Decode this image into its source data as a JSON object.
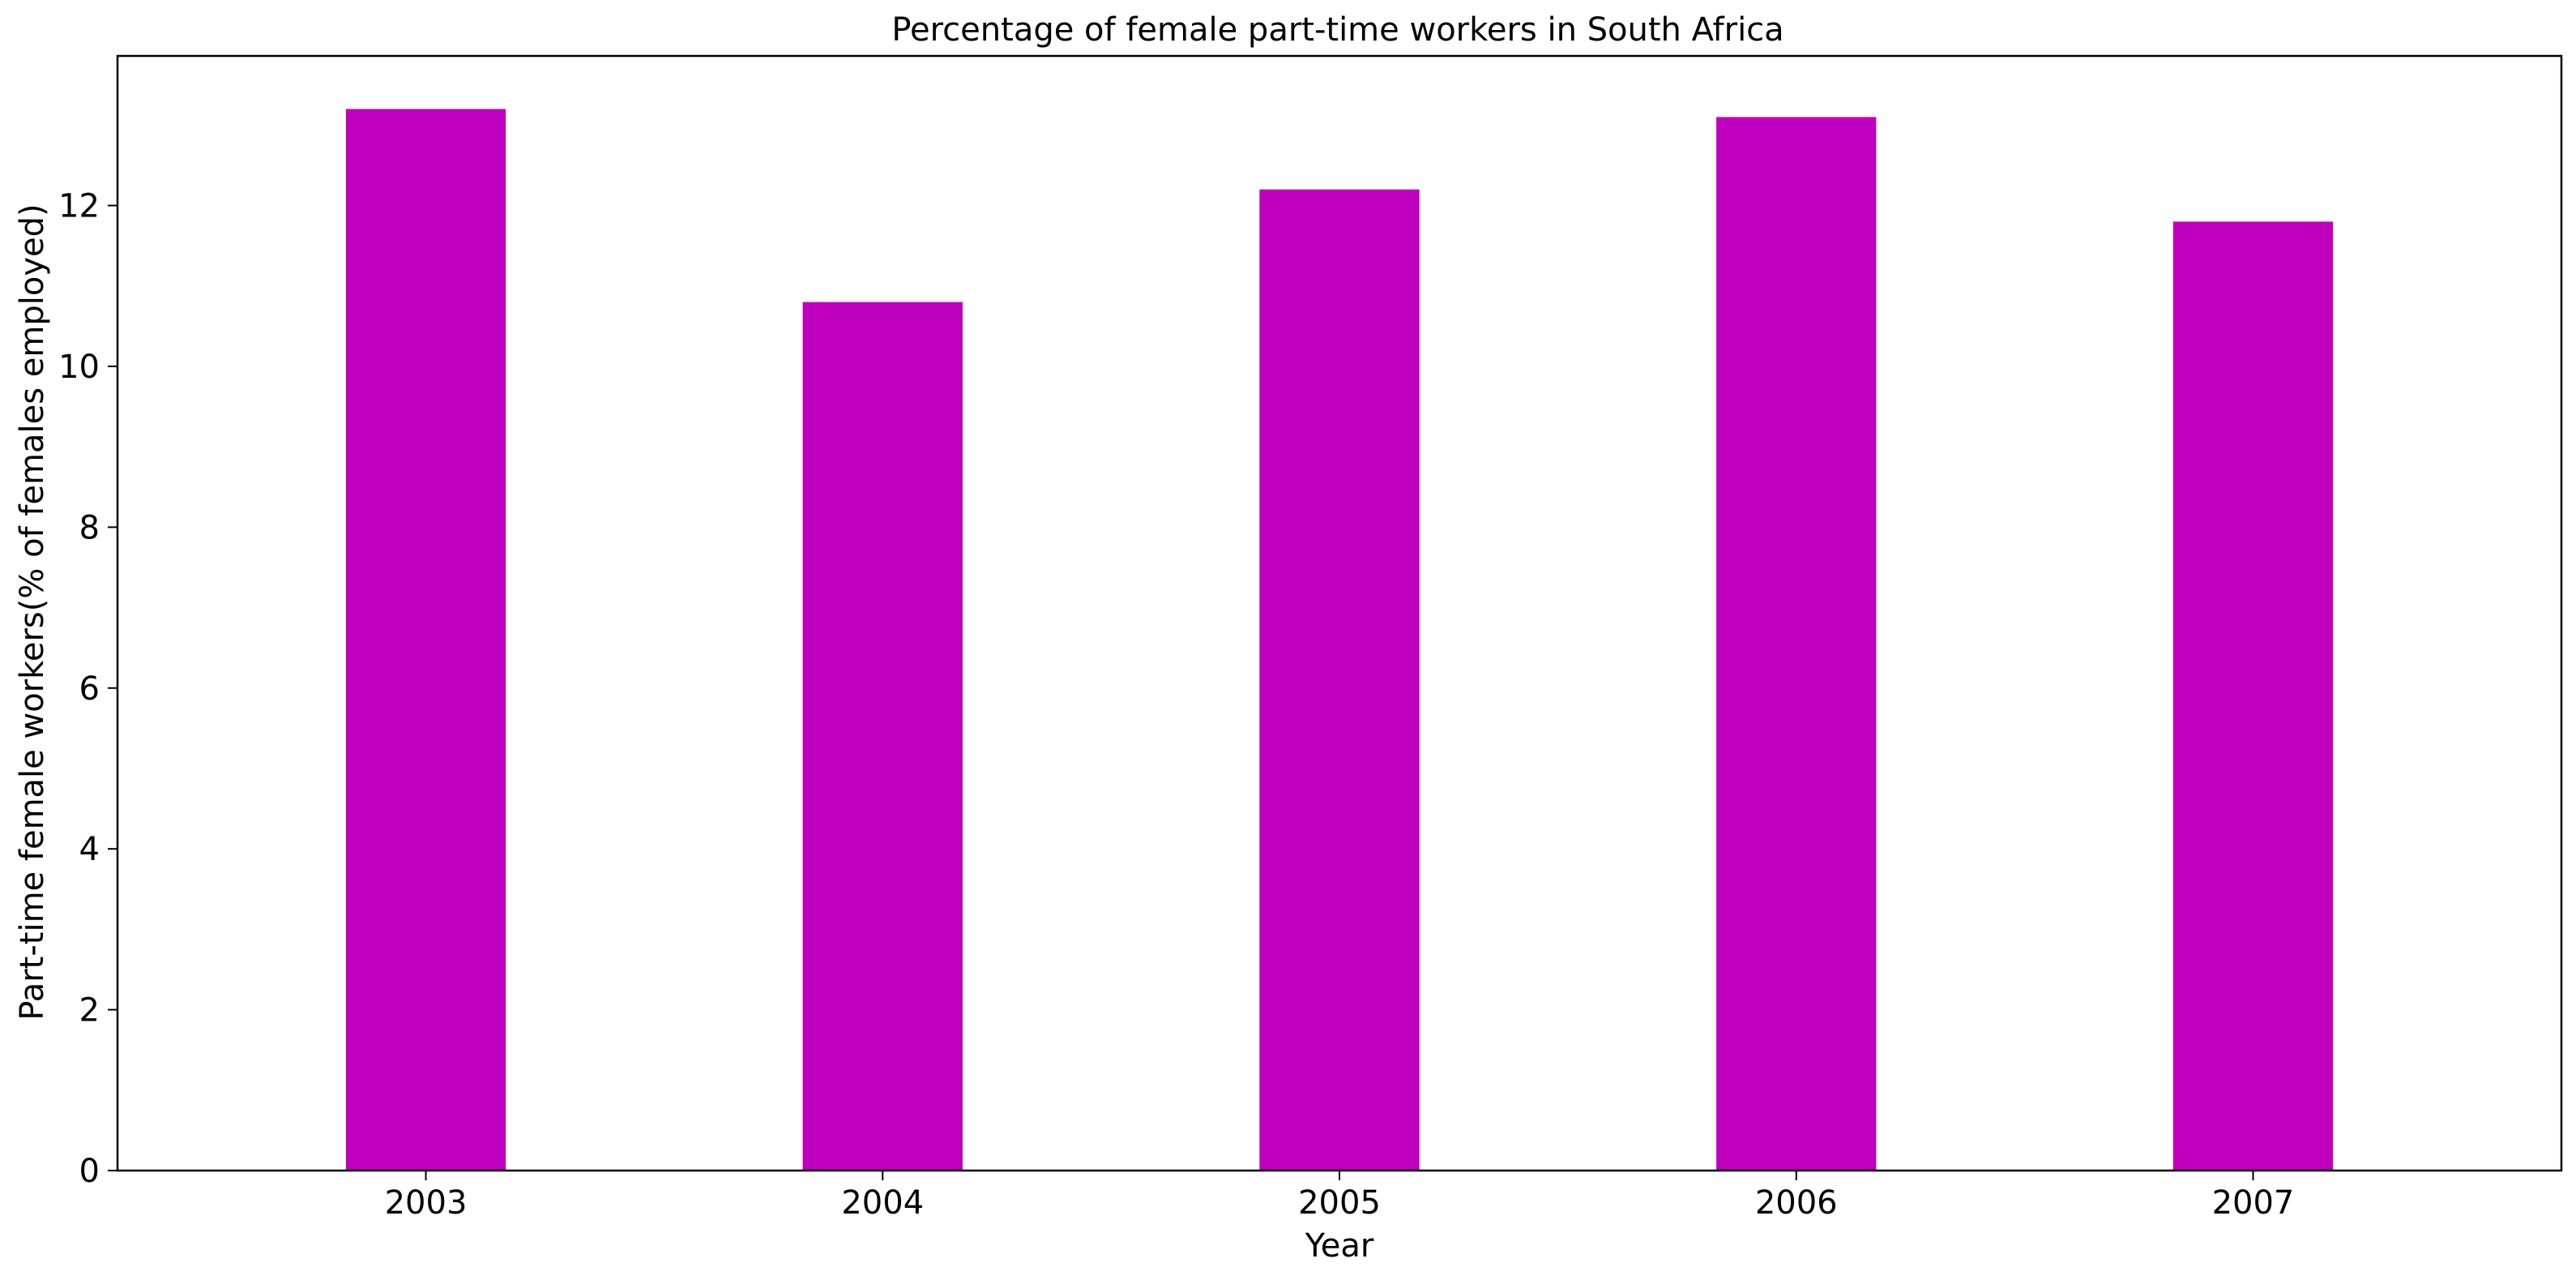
{
  "chart_data": {
    "type": "bar",
    "title": "Percentage of female part-time workers in South Africa",
    "xlabel": "Year",
    "ylabel": "Part-time female workers(% of females employed)",
    "categories": [
      "2003",
      "2004",
      "2005",
      "2006",
      "2007"
    ],
    "values": [
      13.2,
      10.8,
      12.2,
      13.1,
      11.8
    ],
    "ylim": [
      0,
      13.86
    ],
    "yticks": [
      0,
      2,
      4,
      6,
      8,
      10,
      12
    ],
    "grid": false,
    "legend": "none",
    "bar_color": "#bf00bf"
  }
}
